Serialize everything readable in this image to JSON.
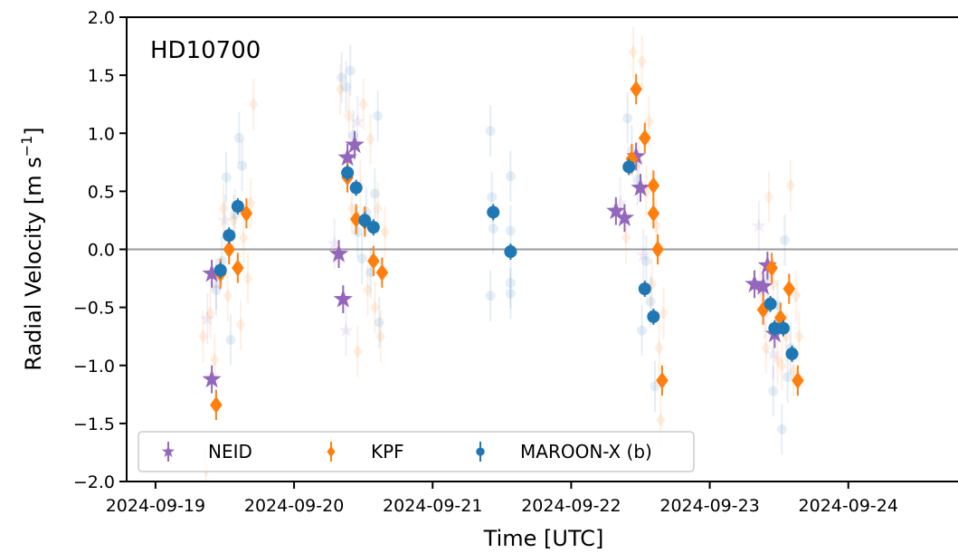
{
  "chart_data": {
    "type": "scatter",
    "star_label": "HD10700",
    "xlabel": "Time [UTC]",
    "ylabel_main": "Radial Velocity [m s",
    "ylabel_sup": "−1",
    "ylabel_close": "]",
    "xlim": [
      "2024-09-18T19:00",
      "2024-09-24T19:00"
    ],
    "ylim": [
      -2.0,
      2.0
    ],
    "x_ticks": [
      "2024-09-19",
      "2024-09-20",
      "2024-09-21",
      "2024-09-22",
      "2024-09-23",
      "2024-09-24"
    ],
    "y_ticks": [
      -2.0,
      -1.5,
      -1.0,
      -0.5,
      0.0,
      0.5,
      1.0,
      1.5,
      2.0
    ],
    "y_tick_labels": [
      "−2.0",
      "−1.5",
      "−1.0",
      "−0.5",
      "0.0",
      "0.5",
      "1.0",
      "1.5",
      "2.0"
    ],
    "zero_line": 0.0,
    "grid": false,
    "legend_position": "bottom-left",
    "colors": {
      "NEID": "#9467bd",
      "KPF": "#ff7f0e",
      "MAROON-X (b)": "#1f77b4",
      "zero_line": "#999999"
    },
    "series": [
      {
        "name": "NEID",
        "marker": "star",
        "points": [
          {
            "x": "2024-09-19T09:45",
            "y": -1.12,
            "err": 0.12
          },
          {
            "x": "2024-09-19T09:45",
            "y": -0.21,
            "err": 0.12
          },
          {
            "x": "2024-09-20T07:45",
            "y": -0.04,
            "err": 0.12
          },
          {
            "x": "2024-09-20T08:30",
            "y": -0.43,
            "err": 0.12
          },
          {
            "x": "2024-09-20T09:15",
            "y": 0.79,
            "err": 0.12
          },
          {
            "x": "2024-09-20T10:30",
            "y": 0.9,
            "err": 0.12
          },
          {
            "x": "2024-09-22T07:45",
            "y": 0.33,
            "err": 0.12
          },
          {
            "x": "2024-09-22T09:15",
            "y": 0.27,
            "err": 0.12
          },
          {
            "x": "2024-09-22T11:15",
            "y": 0.8,
            "err": 0.12
          },
          {
            "x": "2024-09-22T12:00",
            "y": 0.53,
            "err": 0.12
          },
          {
            "x": "2024-09-23T07:45",
            "y": -0.3,
            "err": 0.12
          },
          {
            "x": "2024-09-23T09:15",
            "y": -0.32,
            "err": 0.12
          },
          {
            "x": "2024-09-23T10:00",
            "y": -0.14,
            "err": 0.12
          },
          {
            "x": "2024-09-23T11:15",
            "y": -0.73,
            "err": 0.12
          }
        ]
      },
      {
        "name": "KPF",
        "marker": "diamond",
        "points": [
          {
            "x": "2024-09-19T10:30",
            "y": -1.34,
            "err": 0.13
          },
          {
            "x": "2024-09-19T11:15",
            "y": -0.21,
            "err": 0.13
          },
          {
            "x": "2024-09-19T12:45",
            "y": 0.0,
            "err": 0.13
          },
          {
            "x": "2024-09-19T14:15",
            "y": -0.16,
            "err": 0.13
          },
          {
            "x": "2024-09-19T15:45",
            "y": 0.31,
            "err": 0.13
          },
          {
            "x": "2024-09-20T09:15",
            "y": 0.62,
            "err": 0.13
          },
          {
            "x": "2024-09-20T10:45",
            "y": 0.26,
            "err": 0.13
          },
          {
            "x": "2024-09-20T12:15",
            "y": 0.24,
            "err": 0.13
          },
          {
            "x": "2024-09-20T13:45",
            "y": -0.1,
            "err": 0.13
          },
          {
            "x": "2024-09-20T15:15",
            "y": -0.2,
            "err": 0.13
          },
          {
            "x": "2024-09-22T10:30",
            "y": 0.78,
            "err": 0.13
          },
          {
            "x": "2024-09-22T11:15",
            "y": 1.38,
            "err": 0.13
          },
          {
            "x": "2024-09-22T12:45",
            "y": 0.96,
            "err": 0.13
          },
          {
            "x": "2024-09-22T14:15",
            "y": 0.31,
            "err": 0.13
          },
          {
            "x": "2024-09-22T14:15",
            "y": 0.55,
            "err": 0.13
          },
          {
            "x": "2024-09-22T15:00",
            "y": 0.0,
            "err": 0.13
          },
          {
            "x": "2024-09-22T15:45",
            "y": -1.13,
            "err": 0.13
          },
          {
            "x": "2024-09-23T09:15",
            "y": -0.52,
            "err": 0.13
          },
          {
            "x": "2024-09-23T10:45",
            "y": -0.16,
            "err": 0.13
          },
          {
            "x": "2024-09-23T12:15",
            "y": -0.59,
            "err": 0.13
          },
          {
            "x": "2024-09-23T13:45",
            "y": -0.34,
            "err": 0.13
          },
          {
            "x": "2024-09-23T15:15",
            "y": -1.13,
            "err": 0.13
          }
        ]
      },
      {
        "name": "MAROON-X (b)",
        "marker": "circle",
        "points": [
          {
            "x": "2024-09-19T11:15",
            "y": -0.18,
            "err": 0.07
          },
          {
            "x": "2024-09-19T12:45",
            "y": 0.12,
            "err": 0.07
          },
          {
            "x": "2024-09-19T14:15",
            "y": 0.37,
            "err": 0.07
          },
          {
            "x": "2024-09-20T09:15",
            "y": 0.66,
            "err": 0.07
          },
          {
            "x": "2024-09-20T10:45",
            "y": 0.53,
            "err": 0.07
          },
          {
            "x": "2024-09-20T12:15",
            "y": 0.25,
            "err": 0.07
          },
          {
            "x": "2024-09-20T13:45",
            "y": 0.19,
            "err": 0.07
          },
          {
            "x": "2024-09-21T10:30",
            "y": 0.32,
            "err": 0.07
          },
          {
            "x": "2024-09-21T13:30",
            "y": -0.02,
            "err": 0.07
          },
          {
            "x": "2024-09-22T10:00",
            "y": 0.71,
            "err": 0.07
          },
          {
            "x": "2024-09-22T12:45",
            "y": -0.34,
            "err": 0.07
          },
          {
            "x": "2024-09-22T14:15",
            "y": -0.58,
            "err": 0.07
          },
          {
            "x": "2024-09-23T10:30",
            "y": -0.47,
            "err": 0.07
          },
          {
            "x": "2024-09-23T11:15",
            "y": -0.68,
            "err": 0.07
          },
          {
            "x": "2024-09-23T12:45",
            "y": -0.68,
            "err": 0.07
          },
          {
            "x": "2024-09-23T14:15",
            "y": -0.9,
            "err": 0.07
          }
        ]
      }
    ],
    "faint_points": [
      {
        "series": "NEID",
        "x": "2024-09-19T09:00",
        "y": -0.6
      },
      {
        "series": "NEID",
        "x": "2024-09-19T10:30",
        "y": -0.3
      },
      {
        "series": "NEID",
        "x": "2024-09-19T12:00",
        "y": 0.25
      },
      {
        "series": "NEID",
        "x": "2024-09-20T07:00",
        "y": 0.05
      },
      {
        "series": "NEID",
        "x": "2024-09-20T09:00",
        "y": -0.7
      },
      {
        "series": "NEID",
        "x": "2024-09-20T11:00",
        "y": 1.1
      },
      {
        "series": "NEID",
        "x": "2024-09-22T08:30",
        "y": 0.4
      },
      {
        "series": "NEID",
        "x": "2024-09-22T12:30",
        "y": -0.05
      },
      {
        "series": "NEID",
        "x": "2024-09-23T08:30",
        "y": 0.2
      },
      {
        "series": "NEID",
        "x": "2024-09-23T09:30",
        "y": -0.55
      },
      {
        "series": "NEID",
        "x": "2024-09-23T11:00",
        "y": -0.9
      },
      {
        "series": "KPF",
        "x": "2024-09-19T08:15",
        "y": -0.75
      },
      {
        "series": "KPF",
        "x": "2024-09-19T08:45",
        "y": -1.9
      },
      {
        "series": "KPF",
        "x": "2024-09-19T09:30",
        "y": -0.55
      },
      {
        "series": "KPF",
        "x": "2024-09-19T10:15",
        "y": -0.95
      },
      {
        "series": "KPF",
        "x": "2024-09-19T11:45",
        "y": 0.35
      },
      {
        "series": "KPF",
        "x": "2024-09-19T12:30",
        "y": -0.4
      },
      {
        "series": "KPF",
        "x": "2024-09-19T13:30",
        "y": 0.25
      },
      {
        "series": "KPF",
        "x": "2024-09-19T14:45",
        "y": -0.65
      },
      {
        "series": "KPF",
        "x": "2024-09-19T15:15",
        "y": 0.1
      },
      {
        "series": "KPF",
        "x": "2024-09-19T16:00",
        "y": -0.25
      },
      {
        "series": "KPF",
        "x": "2024-09-19T16:30",
        "y": 0.4
      },
      {
        "series": "KPF",
        "x": "2024-09-19T17:00",
        "y": 1.25
      },
      {
        "series": "KPF",
        "x": "2024-09-20T08:00",
        "y": 1.38
      },
      {
        "series": "KPF",
        "x": "2024-09-20T09:30",
        "y": 1.15
      },
      {
        "series": "KPF",
        "x": "2024-09-20T10:00",
        "y": 0.35
      },
      {
        "series": "KPF",
        "x": "2024-09-20T11:00",
        "y": -0.88
      },
      {
        "series": "KPF",
        "x": "2024-09-20T11:30",
        "y": 0.55
      },
      {
        "series": "KPF",
        "x": "2024-09-20T12:00",
        "y": 1.25
      },
      {
        "series": "KPF",
        "x": "2024-09-20T12:45",
        "y": -0.35
      },
      {
        "series": "KPF",
        "x": "2024-09-20T13:15",
        "y": 0.95
      },
      {
        "series": "KPF",
        "x": "2024-09-20T14:00",
        "y": -0.5
      },
      {
        "series": "KPF",
        "x": "2024-09-20T14:30",
        "y": 0.35
      },
      {
        "series": "KPF",
        "x": "2024-09-20T15:00",
        "y": -0.75
      },
      {
        "series": "KPF",
        "x": "2024-09-20T15:45",
        "y": 0.15
      },
      {
        "series": "KPF",
        "x": "2024-09-22T09:30",
        "y": 0.1
      },
      {
        "series": "KPF",
        "x": "2024-09-22T10:45",
        "y": 1.7
      },
      {
        "series": "KPF",
        "x": "2024-09-22T11:45",
        "y": 0.75
      },
      {
        "series": "KPF",
        "x": "2024-09-22T12:15",
        "y": 1.62
      },
      {
        "series": "KPF",
        "x": "2024-09-22T13:00",
        "y": 0.5
      },
      {
        "series": "KPF",
        "x": "2024-09-22T13:30",
        "y": 1.1
      },
      {
        "series": "KPF",
        "x": "2024-09-22T14:00",
        "y": -0.3
      },
      {
        "series": "KPF",
        "x": "2024-09-22T14:45",
        "y": 0.2
      },
      {
        "series": "KPF",
        "x": "2024-09-22T15:15",
        "y": -0.85
      },
      {
        "series": "KPF",
        "x": "2024-09-22T15:30",
        "y": -1.47
      },
      {
        "series": "KPF",
        "x": "2024-09-22T16:00",
        "y": -0.55
      },
      {
        "series": "KPF",
        "x": "2024-09-23T08:45",
        "y": -0.35
      },
      {
        "series": "KPF",
        "x": "2024-09-23T09:45",
        "y": -0.85
      },
      {
        "series": "KPF",
        "x": "2024-09-23T10:15",
        "y": 0.45
      },
      {
        "series": "KPF",
        "x": "2024-09-23T11:00",
        "y": -0.3
      },
      {
        "series": "KPF",
        "x": "2024-09-23T11:45",
        "y": -0.95
      },
      {
        "series": "KPF",
        "x": "2024-09-23T12:30",
        "y": -1.0
      },
      {
        "series": "KPF",
        "x": "2024-09-23T13:15",
        "y": -0.75
      },
      {
        "series": "KPF",
        "x": "2024-09-23T14:00",
        "y": 0.55
      },
      {
        "series": "KPF",
        "x": "2024-09-23T14:30",
        "y": -1.05
      },
      {
        "series": "KPF",
        "x": "2024-09-23T15:00",
        "y": -0.4
      },
      {
        "series": "KPF",
        "x": "2024-09-23T15:30",
        "y": -0.75
      },
      {
        "series": "MAROON-X (b)",
        "x": "2024-09-19T10:30",
        "y": -0.35
      },
      {
        "series": "MAROON-X (b)",
        "x": "2024-09-19T11:30",
        "y": -0.1
      },
      {
        "series": "MAROON-X (b)",
        "x": "2024-09-19T12:15",
        "y": 0.62
      },
      {
        "series": "MAROON-X (b)",
        "x": "2024-09-19T13:00",
        "y": -0.78
      },
      {
        "series": "MAROON-X (b)",
        "x": "2024-09-19T13:45",
        "y": 0.3
      },
      {
        "series": "MAROON-X (b)",
        "x": "2024-09-19T14:30",
        "y": 0.96
      },
      {
        "series": "MAROON-X (b)",
        "x": "2024-09-19T15:00",
        "y": 0.72
      },
      {
        "series": "MAROON-X (b)",
        "x": "2024-09-20T08:15",
        "y": 1.48
      },
      {
        "series": "MAROON-X (b)",
        "x": "2024-09-20T09:00",
        "y": 1.4
      },
      {
        "series": "MAROON-X (b)",
        "x": "2024-09-20T09:45",
        "y": 1.54
      },
      {
        "series": "MAROON-X (b)",
        "x": "2024-09-20T10:15",
        "y": 0.98
      },
      {
        "series": "MAROON-X (b)",
        "x": "2024-09-20T11:00",
        "y": 0.15
      },
      {
        "series": "MAROON-X (b)",
        "x": "2024-09-20T11:45",
        "y": -0.08
      },
      {
        "series": "MAROON-X (b)",
        "x": "2024-09-20T12:30",
        "y": 0.32
      },
      {
        "series": "MAROON-X (b)",
        "x": "2024-09-20T13:15",
        "y": -0.2
      },
      {
        "series": "MAROON-X (b)",
        "x": "2024-09-20T14:00",
        "y": 0.48
      },
      {
        "series": "MAROON-X (b)",
        "x": "2024-09-20T14:30",
        "y": 1.15
      },
      {
        "series": "MAROON-X (b)",
        "x": "2024-09-20T14:45",
        "y": -0.63
      },
      {
        "series": "MAROON-X (b)",
        "x": "2024-09-21T10:00",
        "y": 1.02
      },
      {
        "series": "MAROON-X (b)",
        "x": "2024-09-21T10:15",
        "y": 0.45
      },
      {
        "series": "MAROON-X (b)",
        "x": "2024-09-21T10:30",
        "y": 0.18
      },
      {
        "series": "MAROON-X (b)",
        "x": "2024-09-21T10:00",
        "y": -0.4
      },
      {
        "series": "MAROON-X (b)",
        "x": "2024-09-21T13:30",
        "y": 0.63
      },
      {
        "series": "MAROON-X (b)",
        "x": "2024-09-21T13:30",
        "y": 0.16
      },
      {
        "series": "MAROON-X (b)",
        "x": "2024-09-21T13:30",
        "y": -0.29
      },
      {
        "series": "MAROON-X (b)",
        "x": "2024-09-21T13:30",
        "y": -0.38
      },
      {
        "series": "MAROON-X (b)",
        "x": "2024-09-22T09:45",
        "y": 1.13
      },
      {
        "series": "MAROON-X (b)",
        "x": "2024-09-22T10:30",
        "y": 0.85
      },
      {
        "series": "MAROON-X (b)",
        "x": "2024-09-22T11:30",
        "y": 0.6
      },
      {
        "series": "MAROON-X (b)",
        "x": "2024-09-22T12:15",
        "y": -0.7
      },
      {
        "series": "MAROON-X (b)",
        "x": "2024-09-22T13:00",
        "y": -0.1
      },
      {
        "series": "MAROON-X (b)",
        "x": "2024-09-22T13:45",
        "y": -0.45
      },
      {
        "series": "MAROON-X (b)",
        "x": "2024-09-22T14:30",
        "y": -1.18
      },
      {
        "series": "MAROON-X (b)",
        "x": "2024-09-23T10:00",
        "y": -0.25
      },
      {
        "series": "MAROON-X (b)",
        "x": "2024-09-23T11:00",
        "y": -1.22
      },
      {
        "series": "MAROON-X (b)",
        "x": "2024-09-23T11:45",
        "y": -0.48
      },
      {
        "series": "MAROON-X (b)",
        "x": "2024-09-23T12:30",
        "y": -1.55
      },
      {
        "series": "MAROON-X (b)",
        "x": "2024-09-23T13:00",
        "y": 0.08
      },
      {
        "series": "MAROON-X (b)",
        "x": "2024-09-23T13:30",
        "y": -1.1
      },
      {
        "series": "MAROON-X (b)",
        "x": "2024-09-23T14:00",
        "y": -0.85
      }
    ]
  }
}
